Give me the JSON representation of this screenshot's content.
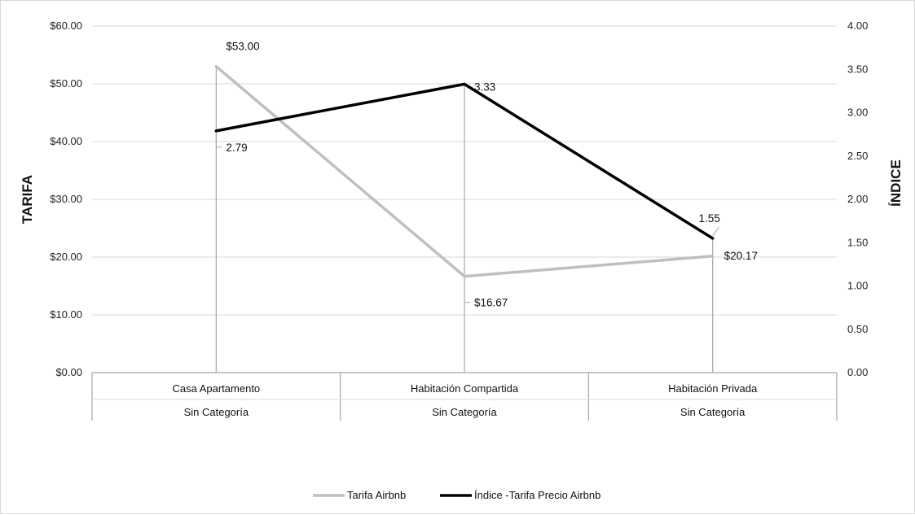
{
  "chart_data": {
    "type": "line",
    "title": "",
    "categories": [
      [
        "Casa Apartamento",
        "Sin Categoría"
      ],
      [
        "Habitación Compartida",
        "Sin Categoría"
      ],
      [
        "Habitación Privada",
        "Sin Categoría"
      ]
    ],
    "y_left": {
      "label": "TARIFA",
      "range": [
        0,
        60
      ],
      "ticks": [
        "$0.00",
        "$10.00",
        "$20.00",
        "$30.00",
        "$40.00",
        "$50.00",
        "$60.00"
      ]
    },
    "y_right": {
      "label": "ÍNDICE",
      "range": [
        0,
        4
      ],
      "ticks": [
        "0.00",
        "0.50",
        "1.00",
        "1.50",
        "2.00",
        "2.50",
        "3.00",
        "3.50",
        "4.00"
      ]
    },
    "series": [
      {
        "name": "Tarifa Airbnb",
        "axis": "left",
        "color": "#bfbfbf",
        "values": [
          53.0,
          16.67,
          20.17
        ],
        "labels": [
          "$53.00",
          "$16.67",
          "$20.17"
        ]
      },
      {
        "name": "Índice -Tarifa Precio Airbnb",
        "axis": "right",
        "color": "#000000",
        "values": [
          2.79,
          3.33,
          1.55
        ],
        "labels": [
          "2.79",
          "3.33",
          "1.55"
        ]
      }
    ],
    "gridlines": true,
    "legend_position": "bottom"
  }
}
